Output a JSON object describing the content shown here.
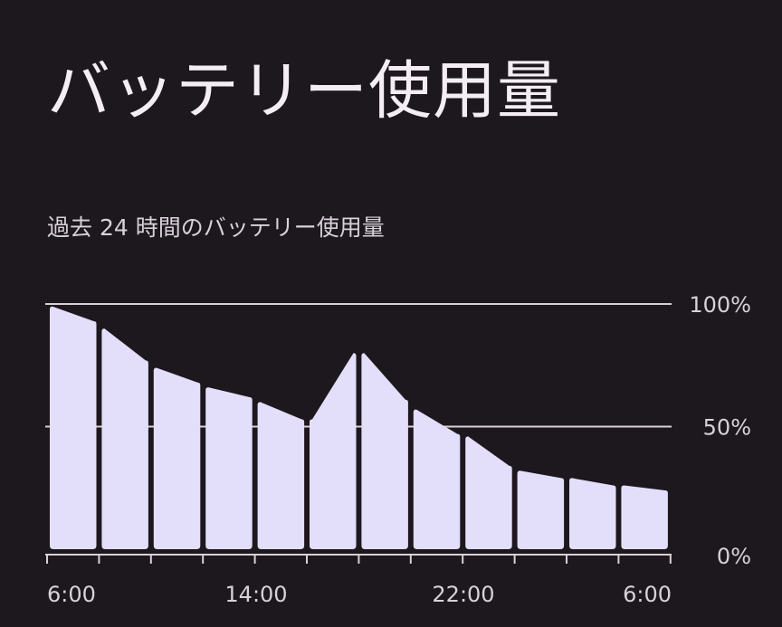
{
  "header": {
    "title": "バッテリー使用量",
    "subtitle": "過去 24 時間のバッテリー使用量"
  },
  "colors": {
    "background": "#1d181e",
    "bar": "#e3defa",
    "grid": "#d9d0d4",
    "text": "#d9d1da",
    "title": "#f4eef4"
  },
  "chart_data": {
    "type": "area",
    "title": "",
    "xlabel": "",
    "ylabel": "",
    "ylim": [
      0,
      100
    ],
    "yticks": [
      "0%",
      "50%",
      "100%"
    ],
    "xticks": [
      "6:00",
      "14:00",
      "22:00",
      "6:00"
    ],
    "grid": true,
    "series": [
      {
        "values": [
          [
            99,
            93
          ],
          [
            90,
            77
          ],
          [
            74,
            68
          ],
          [
            66,
            62
          ],
          [
            60,
            53
          ],
          [
            53,
            80
          ],
          [
            80,
            61
          ],
          [
            57,
            47
          ],
          [
            46,
            34
          ],
          [
            32,
            29
          ],
          [
            29,
            26
          ],
          [
            26,
            24
          ]
        ]
      }
    ]
  }
}
